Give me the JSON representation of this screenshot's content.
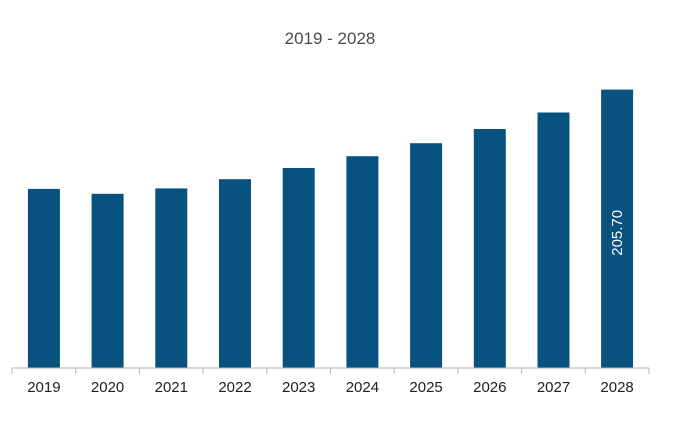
{
  "chart_data": {
    "type": "bar",
    "title": "2019 - 2028",
    "xlabel": "",
    "ylabel": "",
    "categories": [
      "2019",
      "2020",
      "2021",
      "2022",
      "2023",
      "2024",
      "2025",
      "2026",
      "2027",
      "2028"
    ],
    "values": [
      132.3,
      128.7,
      132.7,
      139.5,
      147.8,
      156.5,
      166.1,
      176.6,
      188.8,
      205.7
    ],
    "data_labels": [
      "",
      "",
      "",
      "",
      "",
      "",
      "",
      "",
      "",
      "205.70"
    ],
    "ylim": [
      0,
      215
    ],
    "grid": false,
    "legend": "none",
    "bar_color": "#08527f",
    "axis_color": "#b5b5b5"
  }
}
